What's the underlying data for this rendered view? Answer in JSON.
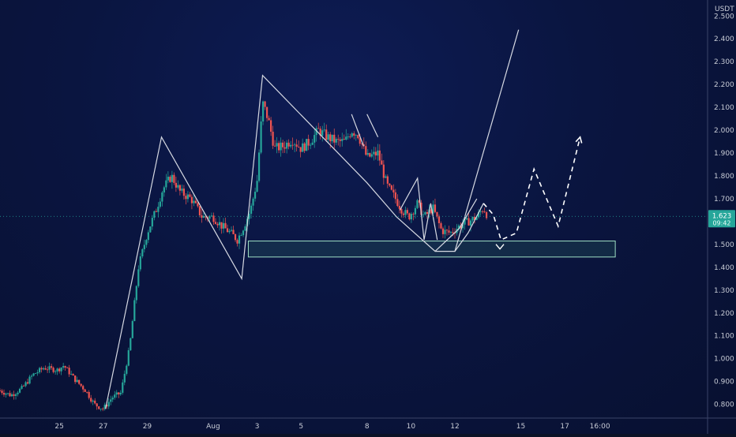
{
  "chart_data": {
    "type": "candlestick",
    "quote_currency": "USDT",
    "y_unit_label": "USDT",
    "ylim": [
      0.74,
      2.57
    ],
    "y_ticks": [
      "2.500",
      "2.400",
      "2.300",
      "2.200",
      "2.100",
      "2.000",
      "1.900",
      "1.800",
      "1.700",
      "1.600",
      "1.500",
      "1.400",
      "1.300",
      "1.200",
      "1.100",
      "1.000",
      "0.900",
      "0.800"
    ],
    "x_ticks": [
      {
        "label": "25",
        "day": 25
      },
      {
        "label": "27",
        "day": 27
      },
      {
        "label": "29",
        "day": 29
      },
      {
        "label": "Aug",
        "day": 32
      },
      {
        "label": "3",
        "day": 34
      },
      {
        "label": "5",
        "day": 36
      },
      {
        "label": "8",
        "day": 39
      },
      {
        "label": "10",
        "day": 41
      },
      {
        "label": "12",
        "day": 43
      },
      {
        "label": "15",
        "day": 46
      },
      {
        "label": "17",
        "day": 48
      },
      {
        "label": "16:00",
        "day": 49.6
      }
    ],
    "xlim": [
      22.3,
      54.5
    ],
    "current_price": "1.623",
    "countdown": "09:42",
    "price_anchors": [
      [
        22.3,
        0.86
      ],
      [
        22.8,
        0.84
      ],
      [
        23.3,
        0.87
      ],
      [
        23.8,
        0.93
      ],
      [
        24.3,
        0.96
      ],
      [
        24.9,
        0.95
      ],
      [
        25.2,
        0.97
      ],
      [
        25.7,
        0.91
      ],
      [
        26.2,
        0.86
      ],
      [
        26.6,
        0.8
      ],
      [
        27.0,
        0.78
      ],
      [
        27.4,
        0.83
      ],
      [
        27.8,
        0.85
      ],
      [
        28.2,
        1.05
      ],
      [
        28.6,
        1.4
      ],
      [
        29.0,
        1.55
      ],
      [
        29.4,
        1.65
      ],
      [
        29.7,
        1.74
      ],
      [
        30.1,
        1.8
      ],
      [
        30.5,
        1.73
      ],
      [
        31.0,
        1.7
      ],
      [
        31.5,
        1.62
      ],
      [
        32.0,
        1.62
      ],
      [
        32.4,
        1.58
      ],
      [
        32.8,
        1.55
      ],
      [
        33.1,
        1.52
      ],
      [
        33.4,
        1.58
      ],
      [
        33.7,
        1.65
      ],
      [
        34.0,
        1.78
      ],
      [
        34.25,
        2.12
      ],
      [
        34.5,
        2.05
      ],
      [
        34.8,
        1.92
      ],
      [
        35.2,
        1.93
      ],
      [
        35.6,
        1.96
      ],
      [
        36.0,
        1.92
      ],
      [
        36.4,
        1.95
      ],
      [
        36.8,
        2.0
      ],
      [
        37.2,
        1.97
      ],
      [
        37.6,
        1.95
      ],
      [
        38.0,
        1.95
      ],
      [
        38.3,
        2.0
      ],
      [
        38.6,
        1.98
      ],
      [
        39.0,
        1.88
      ],
      [
        39.5,
        1.9
      ],
      [
        39.9,
        1.76
      ],
      [
        40.3,
        1.7
      ],
      [
        40.6,
        1.65
      ],
      [
        40.9,
        1.62
      ],
      [
        41.3,
        1.68
      ],
      [
        41.6,
        1.62
      ],
      [
        42.0,
        1.66
      ],
      [
        42.4,
        1.56
      ],
      [
        42.8,
        1.55
      ],
      [
        43.2,
        1.58
      ],
      [
        43.6,
        1.6
      ],
      [
        44.0,
        1.62
      ],
      [
        44.3,
        1.66
      ],
      [
        44.5,
        1.623
      ]
    ],
    "zone": {
      "x1": 33.6,
      "x2": 50.3,
      "y1": 1.445,
      "y2": 1.515
    },
    "solid_lines": [
      [
        [
          27.1,
          0.78
        ],
        [
          29.65,
          1.97
        ],
        [
          33.3,
          1.35
        ],
        [
          34.25,
          2.24
        ],
        [
          39.0,
          1.77
        ],
        [
          40.35,
          1.62
        ],
        [
          42.1,
          1.47
        ],
        [
          43.0,
          1.47
        ],
        [
          45.9,
          2.44
        ]
      ],
      [
        [
          39.0,
          2.07
        ],
        [
          39.5,
          1.97
        ],
        [
          39.0,
          2.07
        ]
      ],
      [
        [
          38.3,
          2.07
        ],
        [
          38.85,
          1.93
        ]
      ],
      [
        [
          40.5,
          1.65
        ],
        [
          41.3,
          1.79
        ],
        [
          41.6,
          1.52
        ],
        [
          41.9,
          1.68
        ],
        [
          42.2,
          1.52
        ]
      ],
      [
        [
          42.1,
          1.47
        ],
        [
          43.2,
          1.57
        ],
        [
          44.0,
          1.7
        ]
      ],
      [
        [
          43.0,
          1.47
        ],
        [
          43.6,
          1.55
        ],
        [
          44.3,
          1.68
        ]
      ]
    ],
    "dashed_projection": [
      [
        44.3,
        1.68
      ],
      [
        44.75,
        1.63
      ],
      [
        45.1,
        1.52
      ],
      [
        45.8,
        1.55
      ],
      [
        46.6,
        1.83
      ],
      [
        47.7,
        1.58
      ],
      [
        48.7,
        1.97
      ]
    ]
  }
}
